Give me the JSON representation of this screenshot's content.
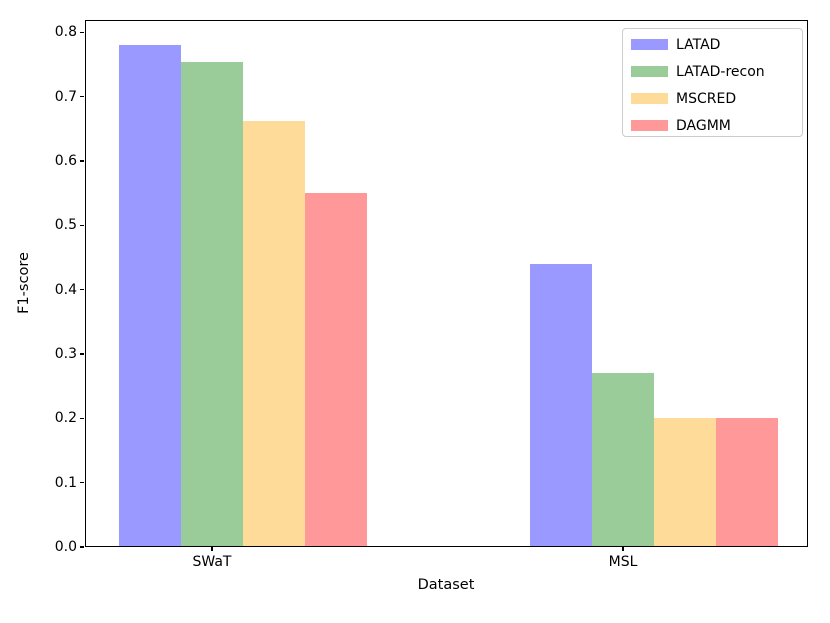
{
  "chart_data": {
    "type": "bar",
    "title": "",
    "xlabel": "Dataset",
    "ylabel": "F1-score",
    "categories": [
      "SWaT",
      "MSL"
    ],
    "series": [
      {
        "name": "LATAD",
        "color": "#9999ff",
        "values": [
          0.78,
          0.44
        ]
      },
      {
        "name": "LATAD-recon",
        "color": "#99cc99",
        "values": [
          0.753,
          0.27
        ]
      },
      {
        "name": "MSCRED",
        "color": "#ffdb99",
        "values": [
          0.662,
          0.2
        ]
      },
      {
        "name": "DAGMM",
        "color": "#ff9999",
        "values": [
          0.55,
          0.2
        ]
      }
    ],
    "ylim": [
      0.0,
      0.819
    ],
    "yticks": [
      0.0,
      0.1,
      0.2,
      0.3,
      0.4,
      0.5,
      0.6,
      0.7,
      0.8
    ],
    "ytick_labels": [
      "0.0",
      "0.1",
      "0.2",
      "0.3",
      "0.4",
      "0.5",
      "0.6",
      "0.7",
      "0.8"
    ],
    "legend": {
      "position": "upper right",
      "entries": [
        "LATAD",
        "LATAD-recon",
        "MSCRED",
        "DAGMM"
      ]
    },
    "grid": false
  }
}
